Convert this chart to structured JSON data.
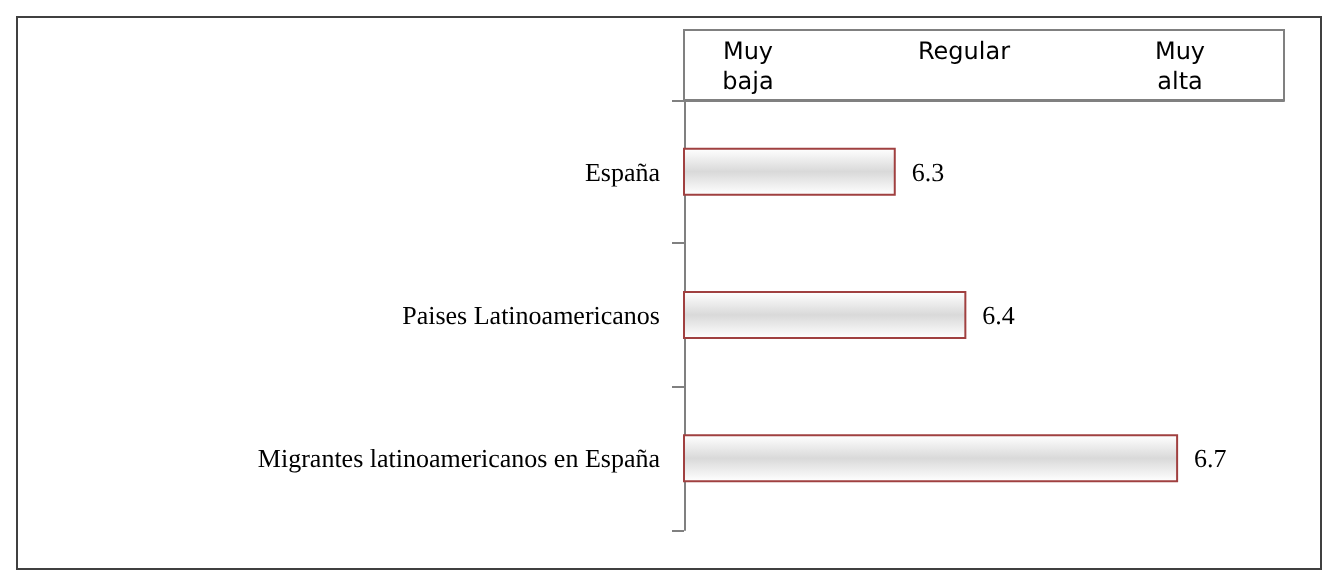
{
  "chart_data": {
    "type": "bar",
    "orientation": "horizontal",
    "categories": [
      "España",
      "Paises Latinoamericanos",
      "Migrantes latinoamericanos en España"
    ],
    "values": [
      6.3,
      6.4,
      6.7
    ],
    "color": "#a04040",
    "xlim": [
      6,
      6.85
    ],
    "data_labels": true,
    "annotations": [
      "Muy\nbaja",
      "Regular",
      "Muy\nalta"
    ]
  }
}
